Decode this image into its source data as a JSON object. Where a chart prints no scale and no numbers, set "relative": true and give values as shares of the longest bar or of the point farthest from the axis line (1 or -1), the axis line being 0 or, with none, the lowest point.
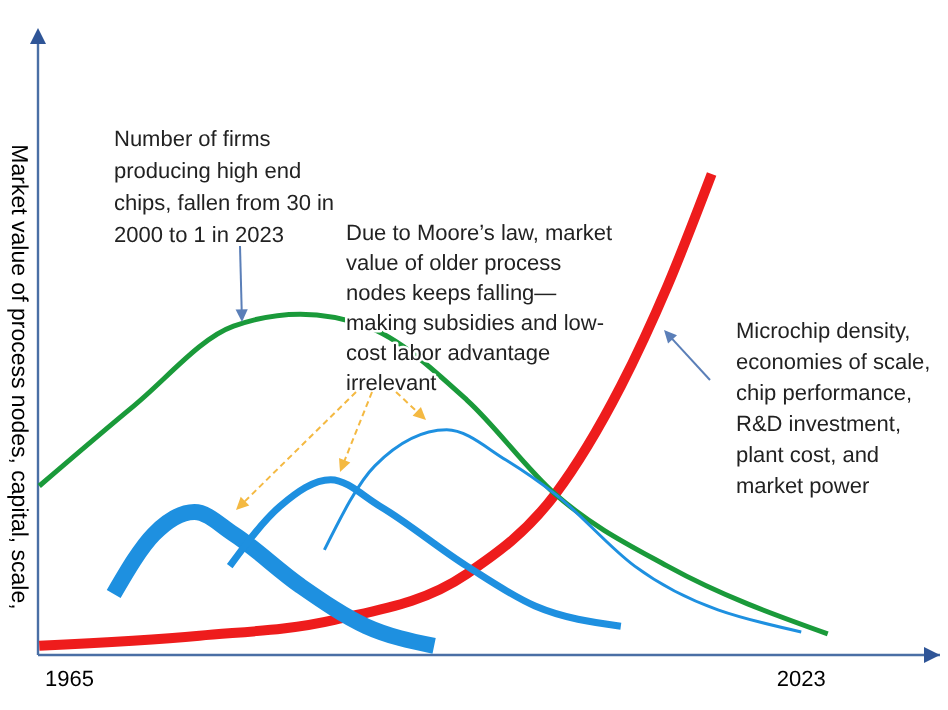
{
  "chart_data": {
    "type": "line",
    "relative": true,
    "ylabel": "Market value of process nodes, capital, scale,",
    "xlim": [
      1962.5,
      2034
    ],
    "xticks": [
      1965,
      2023
    ],
    "series": [
      {
        "color": "#ee1c1c",
        "x": [
          1962.6,
          1975.3,
          1986.0,
          1996.5,
          2003.5,
          2008.7,
          2012.4,
          2015.9
        ],
        "values": [
          0.017,
          0.038,
          0.071,
          0.167,
          0.333,
          0.558,
          0.767,
          1
        ]
      },
      {
        "color": "#1a9a3a",
        "x": [
          1962.6,
          1970.1,
          1978.0,
          1983.3,
          1988.5,
          1996.5,
          2003.5,
          2012.4,
          2025.1
        ],
        "values": [
          0.35,
          0.517,
          0.683,
          0.708,
          0.683,
          0.529,
          0.333,
          0.183,
          0.042
        ]
      },
      {
        "color": "#1e90e0",
        "x": [
          1968.5,
          1971.7,
          1974.9,
          1978.0,
          1983.3,
          1988.5,
          1993.9
        ],
        "values": [
          0.125,
          0.25,
          0.296,
          0.25,
          0.142,
          0.058,
          0.017
        ]
      },
      {
        "color": "#1e90e0",
        "x": [
          1977.7,
          1981.7,
          1985.7,
          1989.6,
          1996.5,
          2001.9,
          2008.7
        ],
        "values": [
          0.183,
          0.308,
          0.363,
          0.308,
          0.183,
          0.1,
          0.058
        ]
      },
      {
        "color": "#1e90e0",
        "x": [
          1985.2,
          1989.2,
          1994.9,
          1999.6,
          2003.5,
          2009.8,
          2023.0
        ],
        "values": [
          0.217,
          0.392,
          0.467,
          0.404,
          0.333,
          0.183,
          0.046
        ]
      }
    ],
    "annotations": [
      "Number of firms producing high end chips, fallen from 30 in 2000 to 1 in 2023",
      "Due to Moore’s law, market value of older process nodes keeps falling—making subsidies and low-cost labor advantage irrelevant",
      "Microchip density, economies of scale, chip performance, R&D investment, plant cost, and market power"
    ]
  }
}
